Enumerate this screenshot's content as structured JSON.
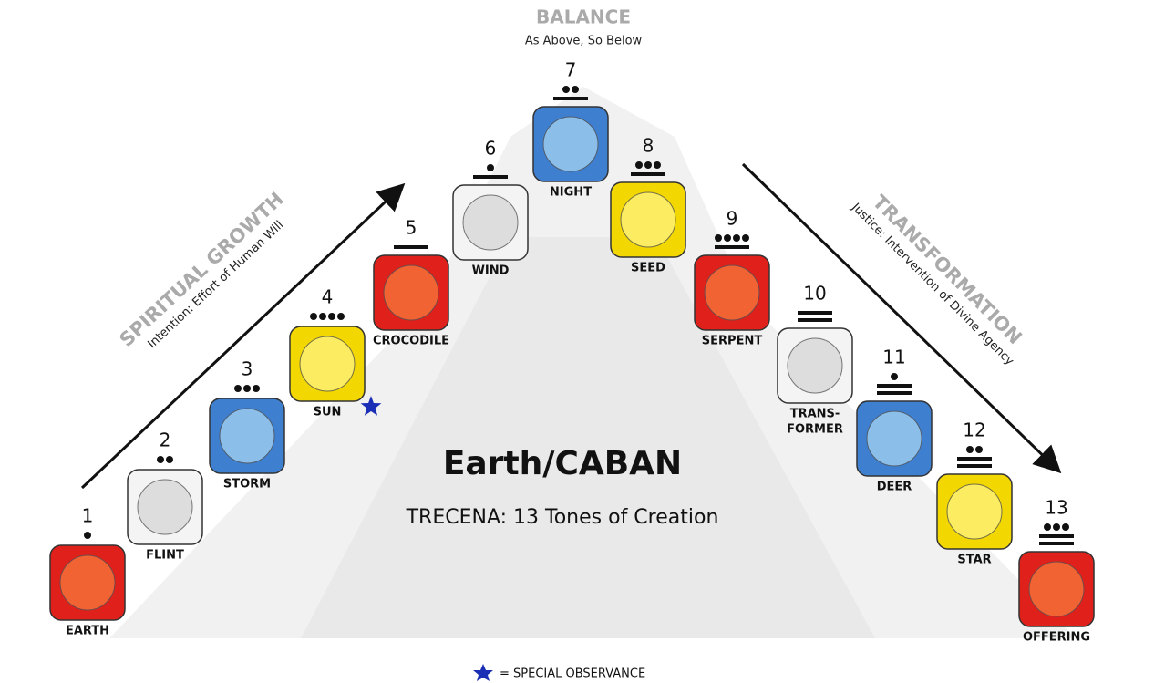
{
  "header": {
    "title": "BALANCE",
    "subtitle": "As Above, So Below"
  },
  "left_arc": {
    "title": "SPIRITUAL GROWTH",
    "subtitle": "Intention: Effort of Human Will"
  },
  "right_arc": {
    "title": "TRANSFORMATION",
    "subtitle": "Justice: Intervention of Divine Agency"
  },
  "center": {
    "title": "Earth/CABAN",
    "subtitle": "TRECENA: 13 Tones of Creation"
  },
  "nodes": [
    {
      "number": 1,
      "label": "EARTH"
    },
    {
      "number": 2,
      "label": "FLINT"
    },
    {
      "number": 3,
      "label": "STORM"
    },
    {
      "number": 4,
      "label": "SUN",
      "special": true
    },
    {
      "number": 5,
      "label": "CROCODILE"
    },
    {
      "number": 6,
      "label": "WIND"
    },
    {
      "number": 7,
      "label": "NIGHT"
    },
    {
      "number": 8,
      "label": "SEED"
    },
    {
      "number": 9,
      "label": "SERPENT"
    },
    {
      "number": 10,
      "label": [
        "TRANS-",
        "FORMER"
      ]
    },
    {
      "number": 11,
      "label": "DEER"
    },
    {
      "number": 12,
      "label": "STAR"
    },
    {
      "number": 13,
      "label": "OFFERING"
    }
  ],
  "legend": {
    "label": "= SPECIAL OBSERVANCE"
  }
}
